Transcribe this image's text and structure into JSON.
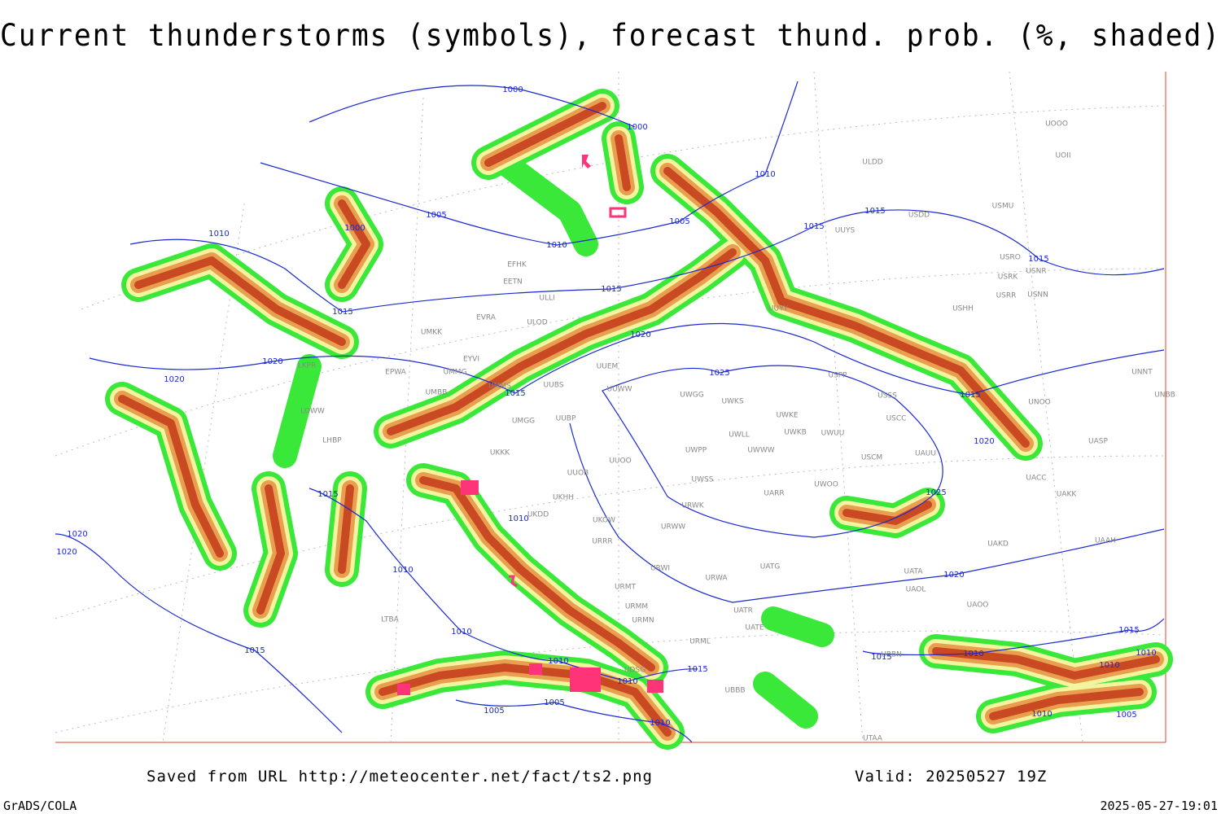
{
  "header": {
    "title": "Current thunderstorms (symbols), forecast thund. prob. (%, shaded)"
  },
  "map": {
    "isobar_labels": [
      "1000",
      "1000",
      "1010",
      "1005",
      "1005",
      "1010",
      "1000",
      "1010",
      "1015",
      "1015",
      "1015",
      "1015",
      "1015",
      "1020",
      "1020",
      "1020",
      "1025",
      "1015",
      "1015",
      "1020",
      "1015",
      "1025",
      "1010",
      "1020",
      "1020",
      "1010",
      "1020",
      "1015",
      "1010",
      "1010",
      "1010",
      "1015",
      "1005",
      "1005",
      "1010",
      "1015",
      "1010",
      "1010",
      "1010",
      "1010",
      "1005",
      "1015"
    ],
    "station_labels": [
      "ULDD",
      "USDD",
      "USMU",
      "UUYS",
      "USRO",
      "USRK",
      "USNR",
      "USRR",
      "USNN",
      "USHH",
      "EFHK",
      "EETN",
      "ULLI",
      "EVRA",
      "ULOD",
      "UMKK",
      "EYVI",
      "UMMG",
      "EPWA",
      "LKPR",
      "UUEM",
      "UUWW",
      "UUBS",
      "UMMS",
      "UMGG",
      "UUBP",
      "UMBB",
      "UKKK",
      "UUOO",
      "UUOB",
      "UKHH",
      "UKDD",
      "UKOW",
      "URRR",
      "URWI",
      "URMT",
      "URMM",
      "URMN",
      "URML",
      "UBBB",
      "UATG",
      "URWA",
      "UATE",
      "UATR",
      "UWGG",
      "UWKS",
      "UWKE",
      "UWKB",
      "UWUU",
      "UWLL",
      "UWWW",
      "UWPP",
      "UWSS",
      "UARR",
      "UWOO",
      "URWW",
      "URWK",
      "USSS",
      "USCC",
      "USCM",
      "UAUU",
      "USPP",
      "UUYY",
      "UNNT",
      "UNBB",
      "UNOO",
      "UASP",
      "UACC",
      "UAKK",
      "UAKD",
      "UAAH",
      "UATA",
      "UAOL",
      "UAOO",
      "UDSG",
      "UTAA",
      "UBBN",
      "UOOO",
      "UOII",
      "LTBA",
      "LHBP",
      "LOWW"
    ]
  },
  "footer": {
    "saved": "Saved from URL http://meteocenter.net/fact/ts2.png",
    "valid": "Valid: 20250527 19Z",
    "software": "GrADS/COLA",
    "timestamp": "2025-05-27-19:01"
  }
}
